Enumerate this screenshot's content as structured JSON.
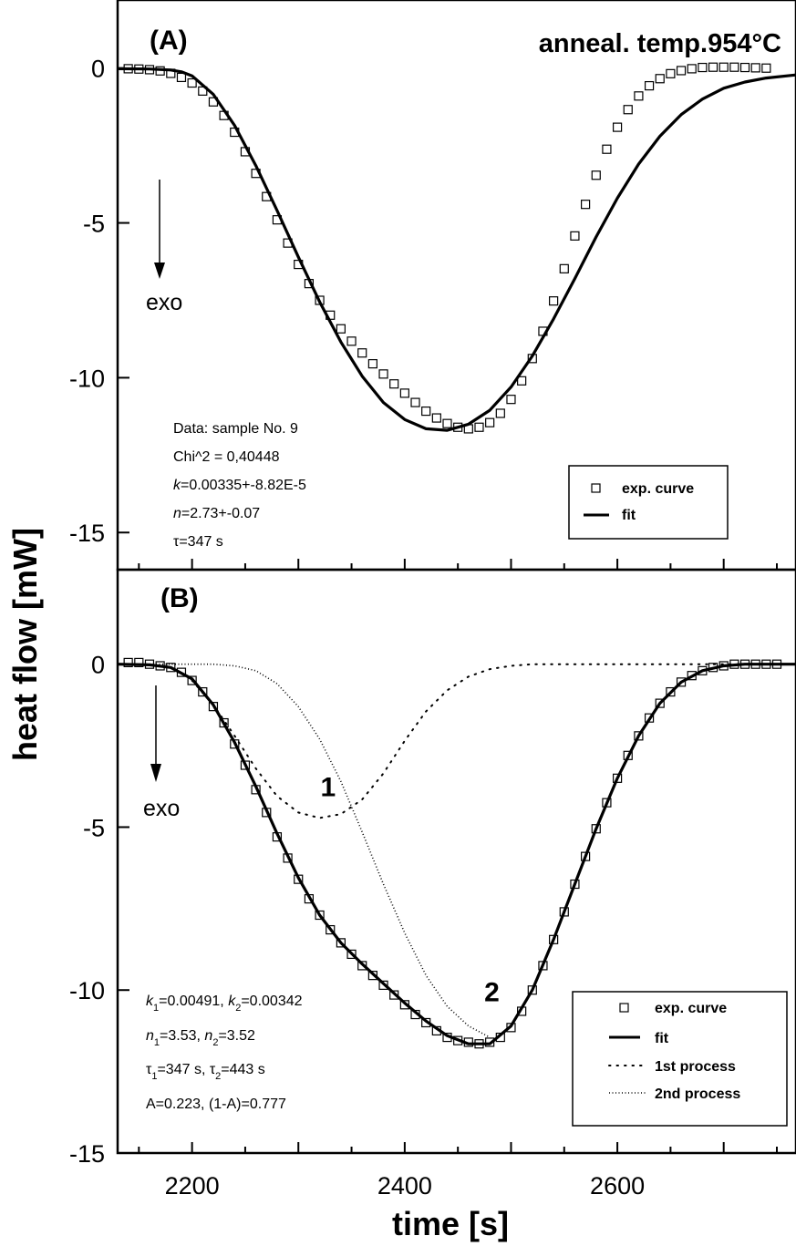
{
  "chart_data": [
    {
      "panel": "A",
      "type": "scatter",
      "panel_label": "(A)",
      "title": "anneal. temp.954°C",
      "xlim": [
        2130,
        2768
      ],
      "ylim": [
        -16.2,
        2.2
      ],
      "yticks": [
        0,
        -5,
        -10,
        -15
      ],
      "ytick_labels": [
        "0",
        "-5",
        "-10",
        "-15"
      ],
      "exo_label": "exo",
      "annotations": [
        "Data: sample No. 9",
        "Chi^2 = 0,40448",
        "k=0.00335+-8.82E-5",
        "n=2.73+-0.07",
        "τ=347 s"
      ],
      "legend": {
        "position": "lower-right",
        "entries": [
          "exp. curve",
          "fit"
        ]
      },
      "series": [
        {
          "name": "exp. curve",
          "style": "open-square",
          "points": [
            [
              2140,
              -0.02
            ],
            [
              2150,
              -0.03
            ],
            [
              2160,
              -0.05
            ],
            [
              2170,
              -0.09
            ],
            [
              2180,
              -0.17
            ],
            [
              2190,
              -0.3
            ],
            [
              2200,
              -0.48
            ],
            [
              2210,
              -0.74
            ],
            [
              2220,
              -1.09
            ],
            [
              2230,
              -1.53
            ],
            [
              2240,
              -2.07
            ],
            [
              2250,
              -2.7
            ],
            [
              2260,
              -3.4
            ],
            [
              2270,
              -4.15
            ],
            [
              2280,
              -4.9
            ],
            [
              2290,
              -5.65
            ],
            [
              2300,
              -6.34
            ],
            [
              2310,
              -6.96
            ],
            [
              2320,
              -7.5
            ],
            [
              2330,
              -7.98
            ],
            [
              2340,
              -8.42
            ],
            [
              2350,
              -8.82
            ],
            [
              2360,
              -9.2
            ],
            [
              2370,
              -9.55
            ],
            [
              2380,
              -9.88
            ],
            [
              2390,
              -10.2
            ],
            [
              2400,
              -10.5
            ],
            [
              2410,
              -10.8
            ],
            [
              2420,
              -11.08
            ],
            [
              2430,
              -11.3
            ],
            [
              2440,
              -11.48
            ],
            [
              2450,
              -11.6
            ],
            [
              2460,
              -11.65
            ],
            [
              2470,
              -11.6
            ],
            [
              2480,
              -11.45
            ],
            [
              2490,
              -11.15
            ],
            [
              2500,
              -10.7
            ],
            [
              2510,
              -10.1
            ],
            [
              2520,
              -9.38
            ],
            [
              2530,
              -8.5
            ],
            [
              2540,
              -7.52
            ],
            [
              2550,
              -6.48
            ],
            [
              2560,
              -5.42
            ],
            [
              2570,
              -4.4
            ],
            [
              2580,
              -3.46
            ],
            [
              2590,
              -2.62
            ],
            [
              2600,
              -1.91
            ],
            [
              2610,
              -1.34
            ],
            [
              2620,
              -0.9
            ],
            [
              2630,
              -0.57
            ],
            [
              2640,
              -0.34
            ],
            [
              2650,
              -0.18
            ],
            [
              2660,
              -0.08
            ],
            [
              2670,
              -0.02
            ],
            [
              2680,
              0.02
            ],
            [
              2690,
              0.03
            ],
            [
              2700,
              0.03
            ],
            [
              2710,
              0.03
            ],
            [
              2720,
              0.02
            ],
            [
              2730,
              0.01
            ],
            [
              2740,
              0.0
            ]
          ]
        },
        {
          "name": "fit",
          "style": "solid-thick",
          "points": [
            [
              2130,
              -0.02
            ],
            [
              2160,
              -0.03
            ],
            [
              2180,
              -0.06
            ],
            [
              2190,
              -0.12
            ],
            [
              2200,
              -0.25
            ],
            [
              2220,
              -0.85
            ],
            [
              2240,
              -1.85
            ],
            [
              2260,
              -3.15
            ],
            [
              2280,
              -4.6
            ],
            [
              2300,
              -6.1
            ],
            [
              2320,
              -7.55
            ],
            [
              2340,
              -8.85
            ],
            [
              2360,
              -9.95
            ],
            [
              2380,
              -10.8
            ],
            [
              2400,
              -11.35
            ],
            [
              2420,
              -11.65
            ],
            [
              2440,
              -11.7
            ],
            [
              2460,
              -11.5
            ],
            [
              2480,
              -11.05
            ],
            [
              2500,
              -10.3
            ],
            [
              2520,
              -9.3
            ],
            [
              2540,
              -8.1
            ],
            [
              2560,
              -6.8
            ],
            [
              2580,
              -5.45
            ],
            [
              2600,
              -4.2
            ],
            [
              2620,
              -3.1
            ],
            [
              2640,
              -2.2
            ],
            [
              2660,
              -1.5
            ],
            [
              2680,
              -1.0
            ],
            [
              2700,
              -0.65
            ],
            [
              2720,
              -0.45
            ],
            [
              2740,
              -0.32
            ],
            [
              2768,
              -0.22
            ]
          ]
        }
      ]
    },
    {
      "panel": "B",
      "type": "scatter",
      "panel_label": "(B)",
      "xlabel": "time  [s]",
      "xlim": [
        2130,
        2768
      ],
      "xticks": [
        2200,
        2400,
        2600
      ],
      "ylim": [
        -15,
        2.9
      ],
      "yticks": [
        0,
        -5,
        -10,
        -15
      ],
      "ytick_labels": [
        "0",
        "-5",
        "-10",
        "-15"
      ],
      "exo_label": "exo",
      "peak_labels": [
        {
          "text": "1",
          "x": 2328,
          "y": -4.05
        },
        {
          "text": "2",
          "x": 2482,
          "y": -10.35
        }
      ],
      "annotations": [
        "k1=0.00491, k2=0.00342",
        "n1=3.53,  n2=3.52",
        "τ1=347 s,  τ2=443 s",
        "A=0.223, (1-A)=0.777"
      ],
      "legend": {
        "position": "lower-right",
        "entries": [
          "exp. curve",
          "fit",
          "1st process",
          "2nd process"
        ]
      },
      "series": [
        {
          "name": "exp. curve",
          "style": "open-square",
          "points": [
            [
              2140,
              0.05
            ],
            [
              2150,
              0.05
            ],
            [
              2160,
              0.0
            ],
            [
              2170,
              -0.05
            ],
            [
              2180,
              -0.1
            ],
            [
              2190,
              -0.25
            ],
            [
              2200,
              -0.5
            ],
            [
              2210,
              -0.85
            ],
            [
              2220,
              -1.3
            ],
            [
              2230,
              -1.8
            ],
            [
              2240,
              -2.45
            ],
            [
              2250,
              -3.1
            ],
            [
              2260,
              -3.85
            ],
            [
              2270,
              -4.55
            ],
            [
              2280,
              -5.3
            ],
            [
              2290,
              -5.95
            ],
            [
              2300,
              -6.6
            ],
            [
              2310,
              -7.2
            ],
            [
              2320,
              -7.7
            ],
            [
              2330,
              -8.15
            ],
            [
              2340,
              -8.55
            ],
            [
              2350,
              -8.9
            ],
            [
              2360,
              -9.25
            ],
            [
              2370,
              -9.55
            ],
            [
              2380,
              -9.85
            ],
            [
              2390,
              -10.15
            ],
            [
              2400,
              -10.45
            ],
            [
              2410,
              -10.75
            ],
            [
              2420,
              -11.0
            ],
            [
              2430,
              -11.25
            ],
            [
              2440,
              -11.45
            ],
            [
              2450,
              -11.55
            ],
            [
              2460,
              -11.6
            ],
            [
              2470,
              -11.65
            ],
            [
              2480,
              -11.6
            ],
            [
              2490,
              -11.45
            ],
            [
              2500,
              -11.15
            ],
            [
              2510,
              -10.65
            ],
            [
              2520,
              -10.0
            ],
            [
              2530,
              -9.25
            ],
            [
              2540,
              -8.45
            ],
            [
              2550,
              -7.6
            ],
            [
              2560,
              -6.75
            ],
            [
              2570,
              -5.9
            ],
            [
              2580,
              -5.05
            ],
            [
              2590,
              -4.25
            ],
            [
              2600,
              -3.5
            ],
            [
              2610,
              -2.8
            ],
            [
              2620,
              -2.2
            ],
            [
              2630,
              -1.65
            ],
            [
              2640,
              -1.2
            ],
            [
              2650,
              -0.85
            ],
            [
              2660,
              -0.55
            ],
            [
              2670,
              -0.35
            ],
            [
              2680,
              -0.2
            ],
            [
              2690,
              -0.1
            ],
            [
              2700,
              -0.05
            ],
            [
              2710,
              0.0
            ],
            [
              2720,
              0.0
            ],
            [
              2730,
              0.0
            ],
            [
              2740,
              0.0
            ],
            [
              2750,
              0.0
            ]
          ]
        },
        {
          "name": "fit",
          "style": "solid-thick",
          "points": [
            [
              2130,
              0.0
            ],
            [
              2160,
              -0.02
            ],
            [
              2180,
              -0.1
            ],
            [
              2200,
              -0.45
            ],
            [
              2220,
              -1.25
            ],
            [
              2240,
              -2.4
            ],
            [
              2260,
              -3.75
            ],
            [
              2280,
              -5.2
            ],
            [
              2300,
              -6.55
            ],
            [
              2320,
              -7.7
            ],
            [
              2340,
              -8.55
            ],
            [
              2360,
              -9.2
            ],
            [
              2380,
              -9.8
            ],
            [
              2400,
              -10.4
            ],
            [
              2420,
              -10.95
            ],
            [
              2440,
              -11.4
            ],
            [
              2460,
              -11.65
            ],
            [
              2480,
              -11.65
            ],
            [
              2500,
              -11.1
            ],
            [
              2520,
              -10.0
            ],
            [
              2540,
              -8.45
            ],
            [
              2560,
              -6.75
            ],
            [
              2580,
              -5.05
            ],
            [
              2600,
              -3.5
            ],
            [
              2620,
              -2.2
            ],
            [
              2640,
              -1.2
            ],
            [
              2660,
              -0.55
            ],
            [
              2680,
              -0.2
            ],
            [
              2700,
              -0.05
            ],
            [
              2720,
              0.0
            ],
            [
              2768,
              0.0
            ]
          ]
        },
        {
          "name": "1st process",
          "style": "dotted",
          "points": [
            [
              2200,
              -0.5
            ],
            [
              2220,
              -1.25
            ],
            [
              2240,
              -2.2
            ],
            [
              2260,
              -3.2
            ],
            [
              2280,
              -4.05
            ],
            [
              2300,
              -4.55
            ],
            [
              2320,
              -4.72
            ],
            [
              2340,
              -4.6
            ],
            [
              2360,
              -4.15
            ],
            [
              2380,
              -3.35
            ],
            [
              2400,
              -2.35
            ],
            [
              2420,
              -1.45
            ],
            [
              2440,
              -0.8
            ],
            [
              2460,
              -0.38
            ],
            [
              2480,
              -0.15
            ],
            [
              2500,
              -0.05
            ],
            [
              2520,
              0.0
            ],
            [
              2768,
              0.0
            ]
          ]
        },
        {
          "name": "2nd process",
          "style": "dense-dotted",
          "points": [
            [
              2130,
              0.0
            ],
            [
              2220,
              0.0
            ],
            [
              2240,
              -0.05
            ],
            [
              2260,
              -0.2
            ],
            [
              2280,
              -0.6
            ],
            [
              2300,
              -1.3
            ],
            [
              2320,
              -2.3
            ],
            [
              2340,
              -3.6
            ],
            [
              2360,
              -5.15
            ],
            [
              2380,
              -6.75
            ],
            [
              2400,
              -8.25
            ],
            [
              2420,
              -9.55
            ],
            [
              2440,
              -10.5
            ],
            [
              2460,
              -11.1
            ],
            [
              2480,
              -11.45
            ]
          ]
        }
      ]
    }
  ],
  "shared": {
    "ylabel": "heat flow  [mW]"
  }
}
